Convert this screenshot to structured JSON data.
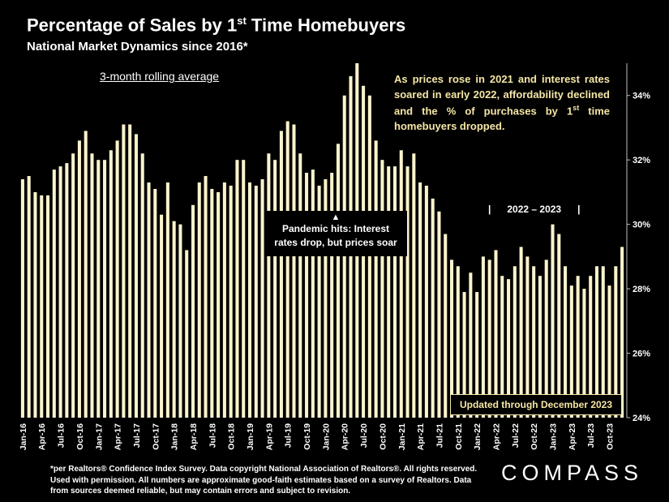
{
  "header": {
    "title_main": "Percentage of Sales by 1",
    "title_sup": "st",
    "title_end": " Time Homebuyers",
    "subtitle": "National Market Dynamics since 2016*"
  },
  "annotations": {
    "rolling": "3-month rolling average",
    "callout_part1": "As prices rose in 2021 and interest rates soared in early 2022, affordability declined and the % of purchases by 1",
    "callout_sup": "st",
    "callout_part2": " time homebuyers dropped.",
    "pandemic_arrow": "▲",
    "pandemic_line1": "Pandemic hits: Interest",
    "pandemic_line2": "rates drop, but prices soar",
    "range_label": "|      2022 – 2023      |",
    "updated": "Updated through December 2023"
  },
  "footer": {
    "footnote": "*per Realtors® Confidence Index Survey. Data copyright National Association of Realtors®. All rights reserved. Used with permission. All numbers are approximate good-faith estimates based on a survey of Realtors. Data from sources deemed reliable, but may contain errors and subject to revision.",
    "logo": "COMPASS"
  },
  "colors": {
    "bar": "#fbf3cc",
    "accent": "#f5e6a6",
    "background": "#000000"
  },
  "chart_data": {
    "type": "bar",
    "title": "Percentage of Sales by 1st Time Homebuyers",
    "subtitle": "National Market Dynamics since 2016*",
    "xlabel": "",
    "ylabel": "",
    "ylim": [
      24,
      35
    ],
    "y_ticks": [
      24,
      26,
      28,
      30,
      32,
      34
    ],
    "y_tick_labels": [
      "24%",
      "26%",
      "28%",
      "30%",
      "32%",
      "34%"
    ],
    "categories": [
      "Jan-16",
      "Feb-16",
      "Mar-16",
      "Apr-16",
      "May-16",
      "Jun-16",
      "Jul-16",
      "Aug-16",
      "Sep-16",
      "Oct-16",
      "Nov-16",
      "Dec-16",
      "Jan-17",
      "Feb-17",
      "Mar-17",
      "Apr-17",
      "May-17",
      "Jun-17",
      "Jul-17",
      "Aug-17",
      "Sep-17",
      "Oct-17",
      "Nov-17",
      "Dec-17",
      "Jan-18",
      "Feb-18",
      "Mar-18",
      "Apr-18",
      "May-18",
      "Jun-18",
      "Jul-18",
      "Aug-18",
      "Sep-18",
      "Oct-18",
      "Nov-18",
      "Dec-18",
      "Jan-19",
      "Feb-19",
      "Mar-19",
      "Apr-19",
      "May-19",
      "Jun-19",
      "Jul-19",
      "Aug-19",
      "Sep-19",
      "Oct-19",
      "Nov-19",
      "Dec-19",
      "Jan-20",
      "Feb-20",
      "Mar-20",
      "Apr-20",
      "May-20",
      "Jun-20",
      "Jul-20",
      "Aug-20",
      "Sep-20",
      "Oct-20",
      "Nov-20",
      "Dec-20",
      "Jan-21",
      "Feb-21",
      "Mar-21",
      "Apr-21",
      "May-21",
      "Jun-21",
      "Jul-21",
      "Aug-21",
      "Sep-21",
      "Oct-21",
      "Nov-21",
      "Dec-21",
      "Jan-22",
      "Feb-22",
      "Mar-22",
      "Apr-22",
      "May-22",
      "Jun-22",
      "Jul-22",
      "Aug-22",
      "Sep-22",
      "Oct-22",
      "Nov-22",
      "Dec-22",
      "Jan-23",
      "Feb-23",
      "Mar-23",
      "Apr-23",
      "May-23",
      "Jun-23",
      "Jul-23",
      "Aug-23",
      "Sep-23",
      "Oct-23",
      "Nov-23",
      "Dec-23"
    ],
    "tick_labels": [
      "Jan-16",
      "Apr-16",
      "Jul-16",
      "Oct-16",
      "Jan-17",
      "Apr-17",
      "Jul-17",
      "Oct-17",
      "Jan-18",
      "Apr-18",
      "Jul-18",
      "Oct-18",
      "Jan-19",
      "Apr-19",
      "Jul-19",
      "Oct-19",
      "Jan-20",
      "Apr-20",
      "Jul-20",
      "Oct-20",
      "Jan-21",
      "Apr-21",
      "Jul-21",
      "Oct-21",
      "Jan-22",
      "Apr-22",
      "Jul-22",
      "Oct-22",
      "Jan-23",
      "Apr-23",
      "Jul-23",
      "Oct-23"
    ],
    "values": [
      31.4,
      31.5,
      31.0,
      30.9,
      30.9,
      31.7,
      31.8,
      31.9,
      32.2,
      32.6,
      32.9,
      32.2,
      32.0,
      32.0,
      32.3,
      32.6,
      33.1,
      33.1,
      32.8,
      32.2,
      31.3,
      31.1,
      30.3,
      31.3,
      30.1,
      30.0,
      29.2,
      30.6,
      31.3,
      31.5,
      31.1,
      31.0,
      31.3,
      31.2,
      32.0,
      32.0,
      31.3,
      31.2,
      31.4,
      32.2,
      32.0,
      32.9,
      33.2,
      33.1,
      32.2,
      31.6,
      31.7,
      31.2,
      31.4,
      31.6,
      32.5,
      34.0,
      34.6,
      35.0,
      34.3,
      34.0,
      32.6,
      32.0,
      31.8,
      31.8,
      32.3,
      31.8,
      32.2,
      31.3,
      31.2,
      30.8,
      30.4,
      29.7,
      28.9,
      28.7,
      27.9,
      28.5,
      27.9,
      29.0,
      28.9,
      29.2,
      28.4,
      28.3,
      28.7,
      29.3,
      29.0,
      28.7,
      28.4,
      28.9,
      30.0,
      29.7,
      28.7,
      28.1,
      28.4,
      28.0,
      28.4,
      28.7,
      28.7,
      28.1,
      28.7,
      29.3
    ]
  }
}
